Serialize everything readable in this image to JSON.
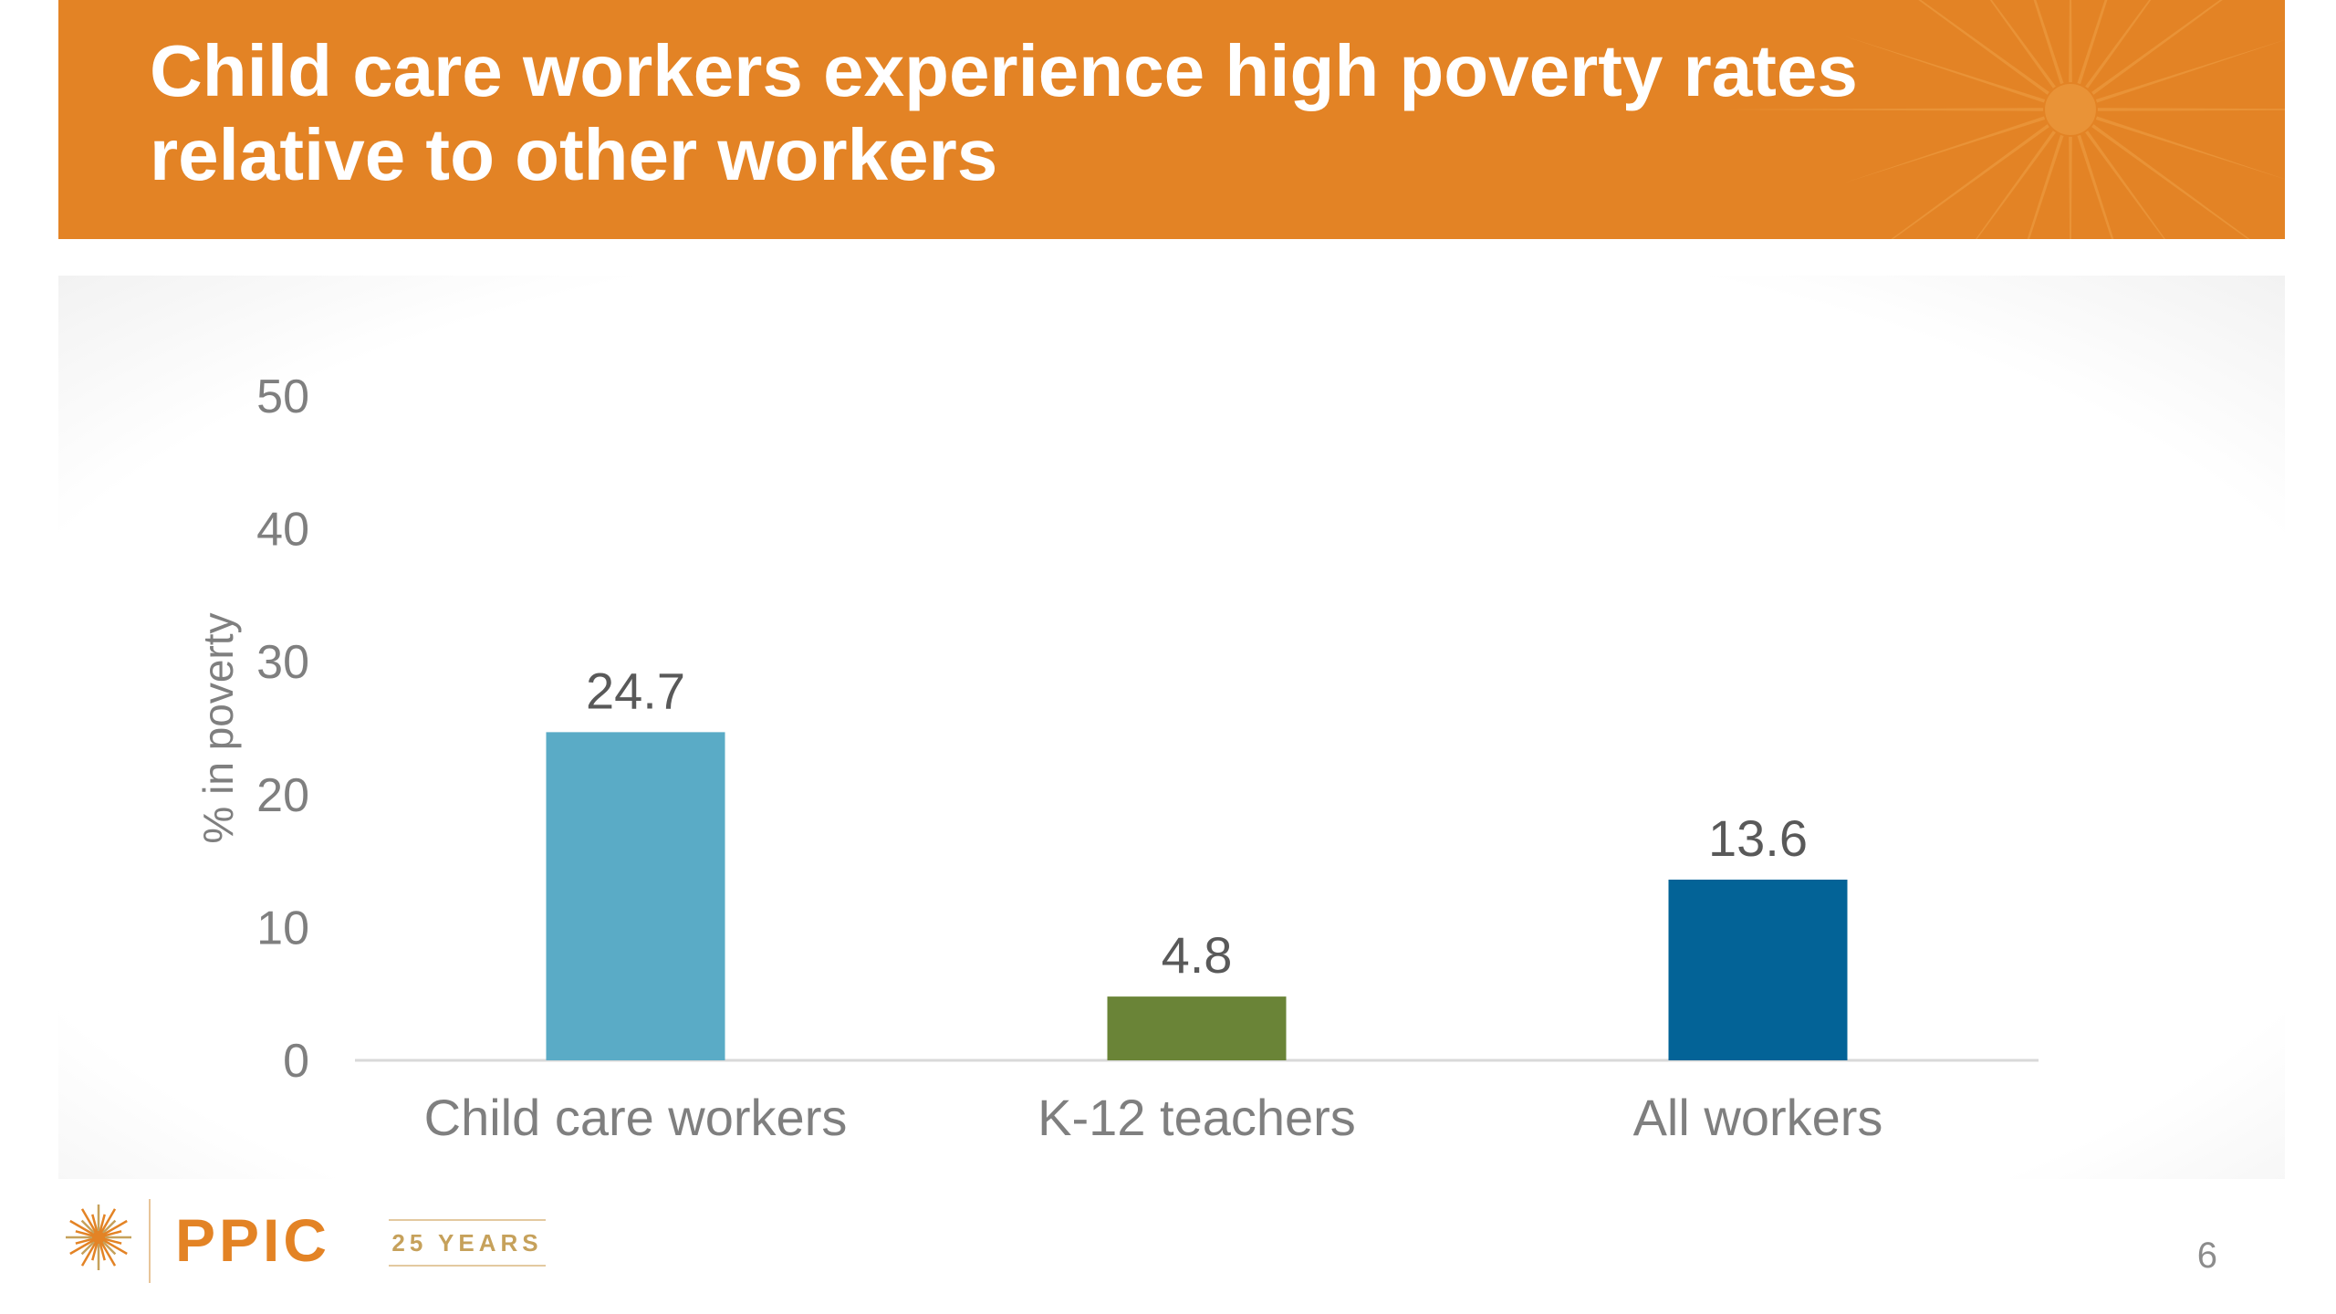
{
  "slide": {
    "title": "Child care workers experience high poverty rates relative to other workers",
    "page_number": "6"
  },
  "branding": {
    "logo_icon": "sunburst-icon",
    "logo_text": "PPIC",
    "badge_text": "25 YEARS",
    "brand_color": "#e38325"
  },
  "chart_data": {
    "type": "bar",
    "title": "",
    "xlabel": "",
    "ylabel": "% in poverty",
    "categories": [
      "Child care workers",
      "K-12 teachers",
      "All workers"
    ],
    "values": [
      24.7,
      4.8,
      13.6
    ],
    "data_labels": [
      "24.7",
      "4.8",
      "13.6"
    ],
    "bar_colors": [
      "#5aabc6",
      "#6a8437",
      "#036397"
    ],
    "ylim": [
      0,
      50
    ],
    "yticks": [
      0,
      10,
      20,
      30,
      40,
      50
    ],
    "ytick_labels": [
      "0",
      "10",
      "20",
      "30",
      "40",
      "50"
    ],
    "grid": false,
    "legend": "none"
  }
}
